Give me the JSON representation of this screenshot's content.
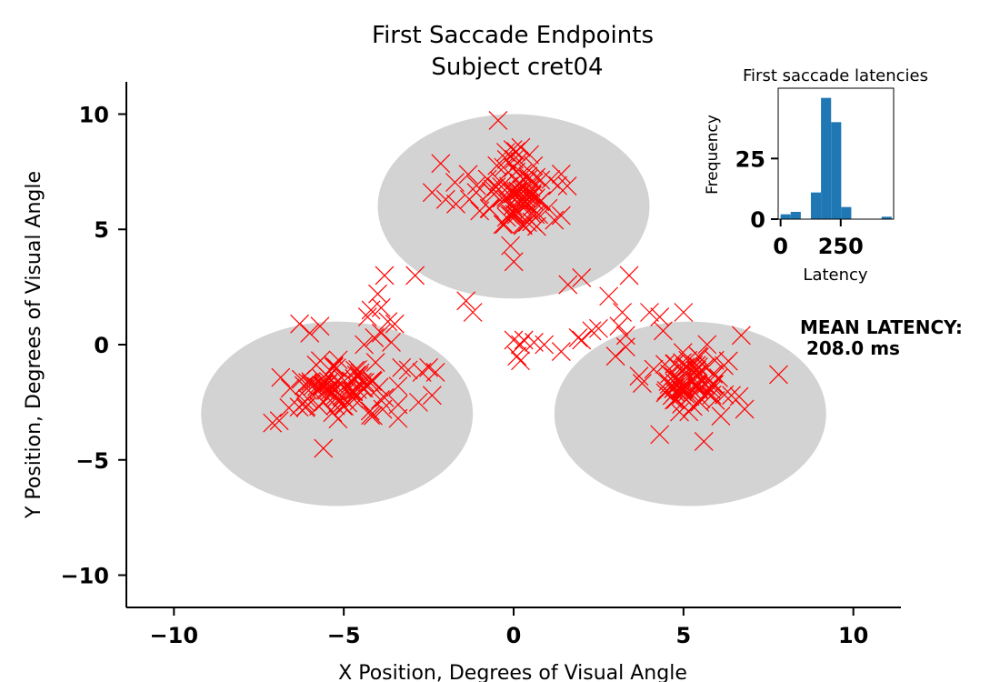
{
  "chart_data": [
    {
      "type": "scatter",
      "title": "First Saccade Endpoints",
      "subtitle": "Subject cret04",
      "xlabel": "X Position, Degrees of Visual Angle",
      "ylabel": "Y Position, Degrees of Visual Angle",
      "xlim": [
        -11.4,
        11.4
      ],
      "ylim": [
        -11.4,
        11.4
      ],
      "x_ticks": [
        -10,
        -5,
        0,
        5,
        10
      ],
      "x_tick_labels": [
        "−10",
        "−5",
        "0",
        "5",
        "10"
      ],
      "y_ticks": [
        -10,
        -5,
        0,
        5,
        10
      ],
      "y_tick_labels": [
        "−10",
        "−5",
        "0",
        "5",
        "10"
      ],
      "grid": false,
      "marker": "x",
      "marker_color": "#ff0000",
      "target_color": "#d3d3d3",
      "targets": [
        {
          "cx": 0.0,
          "cy": 6.0,
          "rx": 4.0,
          "ry": 4.0
        },
        {
          "cx": -5.2,
          "cy": -3.0,
          "rx": 4.0,
          "ry": 4.0
        },
        {
          "cx": 5.2,
          "cy": -3.0,
          "rx": 4.0,
          "ry": 4.0
        }
      ],
      "clusters": [
        {
          "cx": 0.1,
          "cy": 6.6,
          "sx": 0.5,
          "sy": 0.9,
          "n": 90
        },
        {
          "cx": -5.2,
          "cy": -1.9,
          "sx": 0.7,
          "sy": 0.6,
          "n": 85
        },
        {
          "cx": 5.3,
          "cy": -1.6,
          "sx": 0.6,
          "sy": 0.7,
          "n": 85
        }
      ],
      "scattered_points": [
        [
          -3.8,
          3.0
        ],
        [
          -2.9,
          3.0
        ],
        [
          -4.0,
          2.2
        ],
        [
          -3.9,
          1.6
        ],
        [
          -4.2,
          1.5
        ],
        [
          -4.3,
          1.2
        ],
        [
          -3.7,
          1.0
        ],
        [
          -3.5,
          0.9
        ],
        [
          -3.9,
          0.5
        ],
        [
          -3.6,
          0.1
        ],
        [
          -4.1,
          0.3
        ],
        [
          -4.4,
          0.0
        ],
        [
          -1.4,
          1.9
        ],
        [
          -1.2,
          1.4
        ],
        [
          -2.4,
          6.6
        ],
        [
          -2.0,
          6.3
        ],
        [
          -1.3,
          6.3
        ],
        [
          -1.1,
          6.6
        ],
        [
          -1.7,
          6.1
        ],
        [
          -1.0,
          5.8
        ],
        [
          1.4,
          7.4
        ],
        [
          1.3,
          6.9
        ],
        [
          1.2,
          5.4
        ],
        [
          1.4,
          5.6
        ],
        [
          1.6,
          2.6
        ],
        [
          2.0,
          2.9
        ],
        [
          3.4,
          3.0
        ],
        [
          2.8,
          2.1
        ],
        [
          3.2,
          1.4
        ],
        [
          3.1,
          0.8
        ],
        [
          2.3,
          0.6
        ],
        [
          2.5,
          0.7
        ],
        [
          2.0,
          0.2
        ],
        [
          1.9,
          0.3
        ],
        [
          0.0,
          0.2
        ],
        [
          0.2,
          0.0
        ],
        [
          0.3,
          0.2
        ],
        [
          0.6,
          0.1
        ],
        [
          0.9,
          0.0
        ],
        [
          1.4,
          -0.3
        ],
        [
          0.1,
          -0.5
        ],
        [
          0.2,
          -0.7
        ],
        [
          3.3,
          0.4
        ],
        [
          3.3,
          -0.1
        ],
        [
          3.0,
          -0.5
        ],
        [
          4.0,
          1.4
        ],
        [
          4.3,
          1.2
        ],
        [
          5.0,
          1.4
        ],
        [
          4.4,
          0.6
        ],
        [
          7.8,
          -1.3
        ],
        [
          6.7,
          0.4
        ],
        [
          -6.3,
          0.9
        ],
        [
          -5.7,
          0.8
        ],
        [
          -6.0,
          0.5
        ],
        [
          -7.1,
          -3.4
        ],
        [
          -6.9,
          -3.3
        ],
        [
          -5.6,
          -4.5
        ],
        [
          -3.4,
          -1.8
        ],
        [
          -3.8,
          -2.3
        ],
        [
          -3.4,
          -2.6
        ],
        [
          -3.1,
          -1.1
        ],
        [
          -3.3,
          -1.0
        ],
        [
          -2.5,
          -1.0
        ],
        [
          -2.7,
          -1.2
        ],
        [
          -2.3,
          -1.2
        ],
        [
          -2.4,
          -2.2
        ],
        [
          -2.8,
          -2.5
        ],
        [
          -3.4,
          -3.2
        ],
        [
          4.3,
          -3.9
        ],
        [
          5.6,
          -4.2
        ],
        [
          6.8,
          -2.8
        ],
        [
          6.1,
          -3.1
        ]
      ],
      "seed": 4
    },
    {
      "type": "bar",
      "title": "First saccade latencies",
      "xlabel": "Latency",
      "ylabel": "Frequency",
      "xlim": [
        -10,
        470
      ],
      "ylim": [
        0,
        54
      ],
      "x_ticks": [
        0,
        250
      ],
      "x_tick_labels": [
        "0",
        "250"
      ],
      "y_ticks": [
        0,
        25
      ],
      "y_tick_labels": [
        "0",
        "25"
      ],
      "bin_width": 42,
      "bins": [
        {
          "x0": 0,
          "value": 2
        },
        {
          "x0": 42,
          "value": 3
        },
        {
          "x0": 84,
          "value": 0
        },
        {
          "x0": 126,
          "value": 11
        },
        {
          "x0": 168,
          "value": 50
        },
        {
          "x0": 210,
          "value": 40
        },
        {
          "x0": 252,
          "value": 5
        },
        {
          "x0": 294,
          "value": 0
        },
        {
          "x0": 336,
          "value": 0
        },
        {
          "x0": 378,
          "value": 0
        },
        {
          "x0": 420,
          "value": 1
        }
      ],
      "bar_color": "#1f77b4"
    }
  ],
  "annotation": {
    "line1": "MEAN LATENCY:",
    "line2": " 208.0 ms"
  }
}
